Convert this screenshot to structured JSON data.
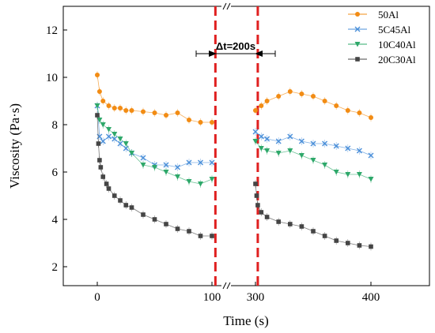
{
  "chart_data": {
    "type": "scatter",
    "xlabel": "Time (s)",
    "ylabel": "Viscosity (Pa·s)",
    "ylim": [
      1.2,
      13
    ],
    "x_axis_break": {
      "between": [
        100,
        300
      ]
    },
    "x_ticks": [
      {
        "value": 0,
        "label": "0"
      },
      {
        "value": 100,
        "label": "100"
      },
      {
        "value": 300,
        "label": "300"
      },
      {
        "value": 400,
        "label": "400"
      }
    ],
    "y_ticks": [
      {
        "value": 2,
        "label": "2"
      },
      {
        "value": 4,
        "label": "4"
      },
      {
        "value": 6,
        "label": "6"
      },
      {
        "value": 8,
        "label": "8"
      },
      {
        "value": 10,
        "label": "10"
      },
      {
        "value": 12,
        "label": "12"
      }
    ],
    "annotation": {
      "text": "Δt=200s"
    },
    "marker_lines": [
      103,
      302
    ],
    "legend_position": "top-right",
    "series": [
      {
        "name": "50Al",
        "color": "#F28C14",
        "marker": "circle",
        "segment1": {
          "x": [
            0,
            2,
            5,
            10,
            15,
            20,
            25,
            30,
            40,
            50,
            60,
            70,
            80,
            90,
            100
          ],
          "y": [
            10.1,
            9.4,
            9.0,
            8.8,
            8.7,
            8.7,
            8.6,
            8.6,
            8.55,
            8.5,
            8.4,
            8.5,
            8.2,
            8.1,
            8.1
          ]
        },
        "segment2": {
          "x": [
            300,
            305,
            310,
            320,
            330,
            340,
            350,
            360,
            370,
            380,
            390,
            400
          ],
          "y": [
            8.6,
            8.8,
            9.0,
            9.2,
            9.4,
            9.3,
            9.2,
            9.0,
            8.8,
            8.6,
            8.5,
            8.3
          ]
        }
      },
      {
        "name": "5C45Al",
        "color": "#4A8FD9",
        "marker": "x",
        "segment1": {
          "x": [
            0,
            2,
            5,
            10,
            15,
            20,
            25,
            30,
            40,
            50,
            60,
            70,
            80,
            90,
            100
          ],
          "y": [
            8.8,
            7.5,
            7.3,
            7.5,
            7.4,
            7.2,
            7.0,
            6.8,
            6.6,
            6.3,
            6.3,
            6.2,
            6.4,
            6.4,
            6.4
          ]
        },
        "segment2": {
          "x": [
            300,
            305,
            310,
            320,
            330,
            340,
            350,
            360,
            370,
            380,
            390,
            400
          ],
          "y": [
            7.7,
            7.5,
            7.4,
            7.3,
            7.5,
            7.3,
            7.2,
            7.2,
            7.1,
            7.0,
            6.9,
            6.7
          ]
        }
      },
      {
        "name": "10C40Al",
        "color": "#2EA86A",
        "marker": "triangle-down",
        "segment1": {
          "x": [
            0,
            2,
            5,
            10,
            15,
            20,
            25,
            30,
            40,
            50,
            60,
            70,
            80,
            90,
            100
          ],
          "y": [
            8.8,
            8.2,
            8.0,
            7.8,
            7.6,
            7.4,
            7.2,
            6.8,
            6.3,
            6.2,
            6.0,
            5.8,
            5.6,
            5.5,
            5.7
          ]
        },
        "segment2": {
          "x": [
            300,
            305,
            310,
            320,
            330,
            340,
            350,
            360,
            370,
            380,
            390,
            400
          ],
          "y": [
            7.3,
            7.0,
            6.9,
            6.8,
            6.9,
            6.7,
            6.5,
            6.3,
            6.0,
            5.9,
            5.9,
            5.7
          ]
        }
      },
      {
        "name": "20C30Al",
        "color": "#454545",
        "marker": "square",
        "segment1": {
          "x": [
            0,
            1,
            2,
            3,
            5,
            8,
            10,
            15,
            20,
            25,
            30,
            40,
            50,
            60,
            70,
            80,
            90,
            100
          ],
          "y": [
            8.4,
            7.2,
            6.5,
            6.2,
            5.8,
            5.5,
            5.3,
            5.0,
            4.8,
            4.6,
            4.5,
            4.2,
            4.0,
            3.8,
            3.6,
            3.5,
            3.3,
            3.3
          ]
        },
        "segment2": {
          "x": [
            300,
            301,
            302,
            305,
            310,
            320,
            330,
            340,
            350,
            360,
            370,
            380,
            390,
            400
          ],
          "y": [
            5.5,
            5.0,
            4.6,
            4.3,
            4.1,
            3.9,
            3.8,
            3.7,
            3.5,
            3.3,
            3.1,
            3.0,
            2.9,
            2.85
          ]
        }
      }
    ]
  }
}
